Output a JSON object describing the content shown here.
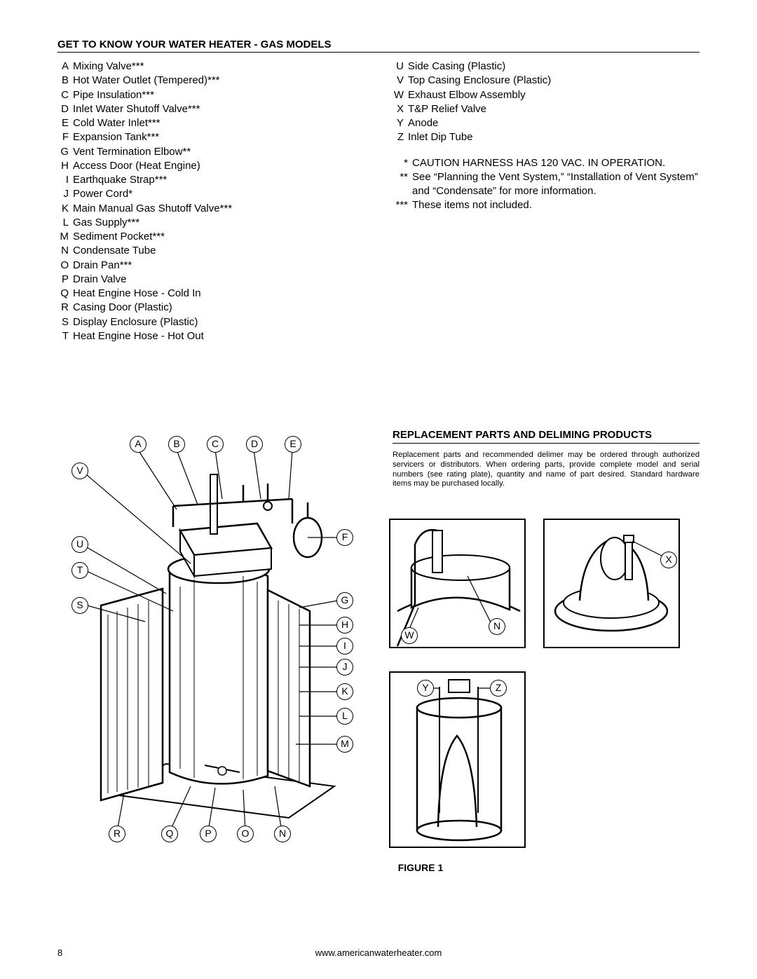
{
  "section1": {
    "title": "GET TO KNOW YOUR WATER HEATER - GAS MODELS",
    "left_items": [
      {
        "letter": "A",
        "label": "Mixing Valve***"
      },
      {
        "letter": "B",
        "label": "Hot Water Outlet (Tempered)***"
      },
      {
        "letter": "C",
        "label": "Pipe Insulation***"
      },
      {
        "letter": "D",
        "label": "Inlet Water Shutoff Valve***"
      },
      {
        "letter": "E",
        "label": "Cold Water Inlet***"
      },
      {
        "letter": "F",
        "label": "Expansion Tank***"
      },
      {
        "letter": "G",
        "label": "Vent Termination Elbow**"
      },
      {
        "letter": "H",
        "label": "Access Door (Heat Engine)"
      },
      {
        "letter": "I",
        "label": "Earthquake Strap***"
      },
      {
        "letter": "J",
        "label": "Power Cord*"
      },
      {
        "letter": "K",
        "label": "Main Manual Gas Shutoff Valve***"
      },
      {
        "letter": "L",
        "label": "Gas Supply***"
      },
      {
        "letter": "M",
        "label": "Sediment Pocket***"
      },
      {
        "letter": "N",
        "label": "Condensate Tube"
      },
      {
        "letter": "O",
        "label": "Drain Pan***"
      },
      {
        "letter": "P",
        "label": "Drain Valve"
      },
      {
        "letter": "Q",
        "label": "Heat Engine Hose - Cold In"
      },
      {
        "letter": "R",
        "label": "Casing Door (Plastic)"
      },
      {
        "letter": "S",
        "label": "Display Enclosure (Plastic)"
      },
      {
        "letter": "T",
        "label": "Heat Engine Hose - Hot Out"
      }
    ],
    "right_items": [
      {
        "letter": "U",
        "label": "Side Casing (Plastic)"
      },
      {
        "letter": "V",
        "label": "Top Casing Enclosure (Plastic)"
      },
      {
        "letter": "W",
        "label": "Exhaust Elbow Assembly"
      },
      {
        "letter": "X",
        "label": "T&P Relief Valve"
      },
      {
        "letter": "Y",
        "label": "Anode"
      },
      {
        "letter": "Z",
        "label": "Inlet Dip Tube"
      }
    ],
    "notes": [
      {
        "mark": "*",
        "text": "CAUTION HARNESS HAS 120 VAC. IN OPERATION."
      },
      {
        "mark": "**",
        "text": "See “Planning the Vent System,” “Installation of Vent System” and “Condensate” for more information."
      },
      {
        "mark": "***",
        "text": "These items not included."
      }
    ]
  },
  "section2": {
    "title": "REPLACEMENT PARTS AND DELIMING PRODUCTS",
    "body": "Replacement parts and recommended delimer may be ordered through authorized servicers or distributors. When ordering parts, provide complete model and serial numbers (see rating plate), quantity and name of part desired. Standard hardware items may be purchased locally."
  },
  "figure_caption": "FIGURE 1",
  "page_number": "8",
  "footer_url": "www.americanwaterheater.com",
  "main_callouts": [
    "A",
    "B",
    "C",
    "D",
    "E",
    "F",
    "G",
    "H",
    "I",
    "J",
    "K",
    "L",
    "M",
    "N",
    "O",
    "P",
    "Q",
    "R",
    "S",
    "T",
    "U",
    "V"
  ],
  "detail1_callouts": [
    "W",
    "N"
  ],
  "detail2_callouts": [
    "X"
  ],
  "detail3_callouts": [
    "Y",
    "Z"
  ]
}
